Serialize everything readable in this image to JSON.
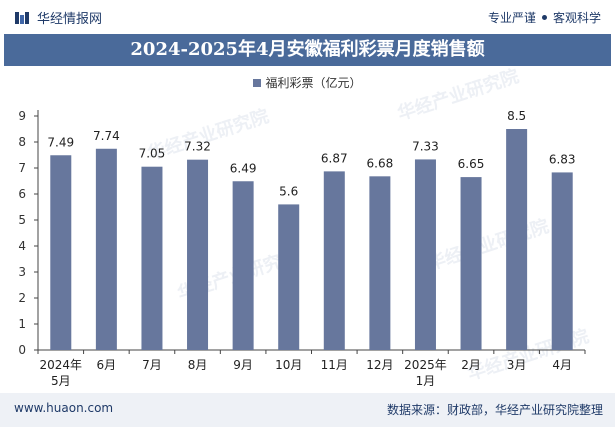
{
  "header": {
    "site_name": "华经情报网",
    "tagline_left": "专业严谨",
    "tagline_right": "客观科学",
    "logo_icon": "huajing-logo-icon"
  },
  "title": "2024-2025年4月安徽福利彩票月度销售额",
  "watermark": "华经产业研究院",
  "footer": {
    "url": "www.huaon.com",
    "source": "数据来源：财政部，华经产业研究院整理"
  },
  "colors": {
    "bar": "#67779d",
    "title_bg": "#4a6a9a",
    "brand": "#1f3a68"
  },
  "chart_data": {
    "type": "bar",
    "title": "2024-2025年4月安徽福利彩票月度销售额",
    "categories": [
      "2024年\n5月",
      "6月",
      "7月",
      "8月",
      "9月",
      "10月",
      "11月",
      "12月",
      "2025年\n1月",
      "2月",
      "3月",
      "4月"
    ],
    "series": [
      {
        "name": "福利彩票（亿元）",
        "values": [
          7.49,
          7.74,
          7.05,
          7.32,
          6.49,
          5.6,
          6.87,
          6.68,
          7.33,
          6.65,
          8.5,
          6.83
        ]
      }
    ],
    "value_labels": [
      "7.49",
      "7.74",
      "7.05",
      "7.32",
      "6.49",
      "5.6",
      "6.87",
      "6.68",
      "7.33",
      "6.65",
      "8.5",
      "6.83"
    ],
    "ylim": [
      0,
      9
    ],
    "yticks": [
      0,
      1,
      2,
      3,
      4,
      5,
      6,
      7,
      8,
      9
    ],
    "legend_position": "top-center",
    "grid": false
  }
}
